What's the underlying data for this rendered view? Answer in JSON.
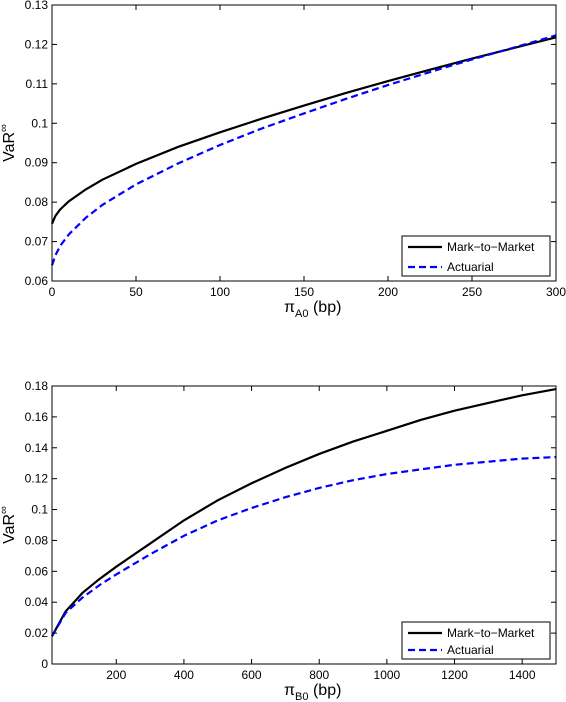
{
  "chart_data": [
    {
      "type": "line",
      "xlabel": {
        "main": "π",
        "sub": "A0",
        "rest": " (bp)"
      },
      "ylabel": {
        "main": "VaR",
        "sup": "∞"
      },
      "xlim": [
        0,
        300
      ],
      "ylim": [
        0.06,
        0.13
      ],
      "xticks": [
        0,
        50,
        100,
        150,
        200,
        250,
        300
      ],
      "yticks": [
        0.06,
        0.07,
        0.08,
        0.09,
        0.1,
        0.11,
        0.12,
        0.13
      ],
      "xtick_labels": [
        "0",
        "50",
        "100",
        "150",
        "200",
        "250",
        "300"
      ],
      "ytick_labels": [
        "0.06",
        "0.07",
        "0.08",
        "0.09",
        "0.1",
        "0.11",
        "0.12",
        "0.13"
      ],
      "legend_placement": "bottom-right",
      "grid": false,
      "series": [
        {
          "name": "Mark−to−Market",
          "color": "#000000",
          "dash": "solid",
          "x": [
            0,
            2,
            5,
            10,
            20,
            30,
            50,
            75,
            100,
            125,
            150,
            175,
            200,
            225,
            250,
            275,
            300
          ],
          "y": [
            0.0745,
            0.0765,
            0.0782,
            0.0802,
            0.0832,
            0.0857,
            0.0897,
            0.094,
            0.0977,
            0.1012,
            0.1045,
            0.1077,
            0.1107,
            0.1136,
            0.1164,
            0.1191,
            0.1218
          ]
        },
        {
          "name": "Actuarial",
          "color": "#0000ff",
          "dash": "dashed",
          "x": [
            0,
            2,
            5,
            10,
            20,
            30,
            50,
            75,
            100,
            125,
            150,
            175,
            200,
            225,
            250,
            275,
            300
          ],
          "y": [
            0.064,
            0.0665,
            0.069,
            0.0718,
            0.076,
            0.0793,
            0.0845,
            0.0898,
            0.0945,
            0.0987,
            0.1025,
            0.1062,
            0.1097,
            0.113,
            0.1162,
            0.1192,
            0.1223
          ]
        }
      ]
    },
    {
      "type": "line",
      "xlabel": {
        "main": "π",
        "sub": "B0",
        "rest": " (bp)"
      },
      "ylabel": {
        "main": "VaR",
        "sup": "∞"
      },
      "xlim": [
        10,
        1500
      ],
      "ylim": [
        0,
        0.18
      ],
      "xticks": [
        200,
        400,
        600,
        800,
        1000,
        1200,
        1400
      ],
      "yticks": [
        0,
        0.02,
        0.04,
        0.06,
        0.08,
        0.1,
        0.12,
        0.14,
        0.16,
        0.18
      ],
      "xtick_labels": [
        "200",
        "400",
        "600",
        "800",
        "1000",
        "1200",
        "1400"
      ],
      "ytick_labels": [
        "0",
        "0.02",
        "0.04",
        "0.06",
        "0.08",
        "0.1",
        "0.12",
        "0.14",
        "0.16",
        "0.18"
      ],
      "legend_placement": "bottom-right",
      "grid": false,
      "series": [
        {
          "name": "Mark−to−Market",
          "color": "#000000",
          "dash": "solid",
          "x": [
            10,
            50,
            100,
            150,
            200,
            300,
            400,
            500,
            600,
            700,
            800,
            900,
            1000,
            1100,
            1200,
            1300,
            1400,
            1500
          ],
          "y": [
            0.018,
            0.034,
            0.046,
            0.055,
            0.063,
            0.078,
            0.093,
            0.106,
            0.117,
            0.127,
            0.136,
            0.144,
            0.151,
            0.158,
            0.164,
            0.169,
            0.174,
            0.178
          ]
        },
        {
          "name": "Actuarial",
          "color": "#0000ff",
          "dash": "dashed",
          "x": [
            10,
            50,
            100,
            150,
            200,
            300,
            400,
            500,
            600,
            700,
            800,
            900,
            1000,
            1100,
            1200,
            1300,
            1400,
            1500
          ],
          "y": [
            0.018,
            0.033,
            0.043,
            0.051,
            0.058,
            0.071,
            0.083,
            0.093,
            0.101,
            0.108,
            0.114,
            0.119,
            0.123,
            0.126,
            0.129,
            0.131,
            0.133,
            0.134
          ]
        }
      ]
    }
  ]
}
